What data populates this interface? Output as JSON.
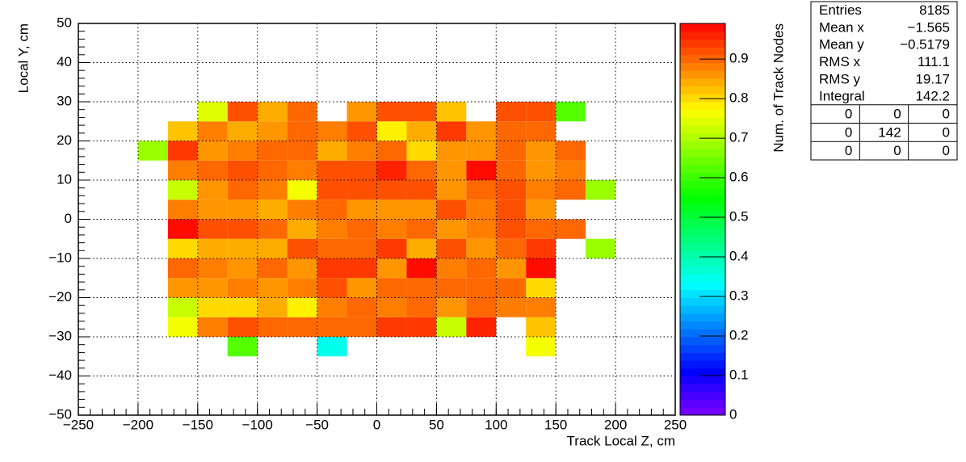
{
  "chart_data": {
    "type": "heatmap",
    "xlabel": "Track Local Z, cm",
    "ylabel": "Local Y, cm",
    "zlabel": "Num. of Track Nodes",
    "xbins": [
      -200,
      -175,
      -150,
      -125,
      -100,
      -75,
      -50,
      -25,
      0,
      25,
      50,
      75,
      100,
      125,
      150,
      175,
      200
    ],
    "ybins": [
      -35,
      -30,
      -25,
      -20,
      -15,
      -10,
      -5,
      0,
      5,
      10,
      15,
      20,
      25,
      30
    ],
    "z": [
      [
        null,
        null,
        null,
        0.62,
        null,
        null,
        0.35,
        null,
        null,
        null,
        null,
        null,
        null,
        0.77,
        null,
        null
      ],
      [
        null,
        0.76,
        0.88,
        0.93,
        0.9,
        0.9,
        0.9,
        0.9,
        0.94,
        0.94,
        0.72,
        0.96,
        null,
        0.82,
        null,
        null
      ],
      [
        null,
        0.73,
        0.8,
        0.8,
        0.85,
        0.79,
        0.88,
        0.91,
        0.89,
        0.91,
        0.86,
        0.91,
        0.89,
        0.89,
        null,
        null
      ],
      [
        null,
        0.86,
        0.86,
        0.89,
        0.87,
        0.89,
        0.93,
        0.87,
        0.91,
        0.91,
        0.9,
        0.9,
        0.9,
        0.8,
        null,
        null
      ],
      [
        null,
        0.9,
        0.88,
        0.86,
        0.91,
        0.87,
        0.94,
        0.94,
        0.86,
        0.98,
        0.88,
        0.91,
        0.87,
        0.98,
        null,
        null
      ],
      [
        null,
        0.8,
        0.85,
        0.85,
        0.84,
        0.92,
        0.91,
        0.9,
        0.95,
        0.85,
        0.93,
        0.87,
        0.9,
        0.94,
        null,
        0.68
      ],
      [
        null,
        0.98,
        0.92,
        0.93,
        0.9,
        0.85,
        0.89,
        0.91,
        0.89,
        0.9,
        0.86,
        0.88,
        0.93,
        0.91,
        0.91,
        null
      ],
      [
        null,
        0.89,
        0.86,
        0.86,
        0.85,
        0.88,
        0.91,
        0.86,
        0.86,
        0.86,
        0.92,
        0.88,
        0.92,
        0.86,
        null,
        null
      ],
      [
        null,
        0.72,
        0.86,
        0.91,
        0.89,
        0.77,
        0.92,
        0.92,
        0.92,
        0.93,
        0.87,
        0.91,
        0.92,
        0.88,
        0.91,
        0.68
      ],
      [
        null,
        0.88,
        0.9,
        0.92,
        0.9,
        0.88,
        0.92,
        0.92,
        0.97,
        0.91,
        0.86,
        0.98,
        0.9,
        0.86,
        0.89,
        null
      ],
      [
        0.68,
        0.95,
        0.86,
        0.88,
        0.91,
        0.91,
        0.84,
        0.88,
        0.9,
        0.81,
        0.86,
        0.86,
        0.9,
        0.86,
        0.91,
        null
      ],
      [
        null,
        0.82,
        0.89,
        0.85,
        0.87,
        0.91,
        0.89,
        0.92,
        0.78,
        0.84,
        0.95,
        0.86,
        0.9,
        0.9,
        null,
        null
      ],
      [
        null,
        null,
        0.75,
        0.92,
        0.85,
        0.9,
        null,
        0.86,
        0.92,
        0.92,
        0.82,
        null,
        0.93,
        0.93,
        0.63,
        null
      ]
    ],
    "xlim": [
      -250,
      250
    ],
    "ylim": [
      -50,
      50
    ],
    "zlim": [
      0,
      0.99
    ],
    "xticks": [
      {
        "value": -250,
        "label": "−250"
      },
      {
        "value": -200,
        "label": "−200"
      },
      {
        "value": -150,
        "label": "−150"
      },
      {
        "value": -100,
        "label": "−100"
      },
      {
        "value": -50,
        "label": "−50"
      },
      0,
      50,
      100,
      150,
      200,
      250
    ],
    "yticks": [
      {
        "value": -50,
        "label": "−50"
      },
      {
        "value": -40,
        "label": "−40"
      },
      {
        "value": -30,
        "label": "−30"
      },
      {
        "value": -20,
        "label": "−20"
      },
      {
        "value": -10,
        "label": "−10"
      },
      0,
      10,
      20,
      30,
      40,
      50
    ],
    "zticks": [
      0,
      0.1,
      0.2,
      0.3,
      0.4,
      0.5,
      0.6,
      0.7,
      0.8,
      0.9
    ],
    "grid": true
  },
  "stats": {
    "rows": [
      [
        "Entries",
        "8185"
      ],
      [
        "Mean x",
        "−1.565"
      ],
      [
        "Mean y",
        "−0.5179"
      ],
      [
        "RMS x",
        "111.1"
      ],
      [
        "RMS y",
        "19.17"
      ],
      [
        "Integral",
        "142.2"
      ]
    ],
    "overflow": [
      [
        0,
        0,
        0
      ],
      [
        0,
        142,
        0
      ],
      [
        0,
        0,
        0
      ]
    ]
  }
}
